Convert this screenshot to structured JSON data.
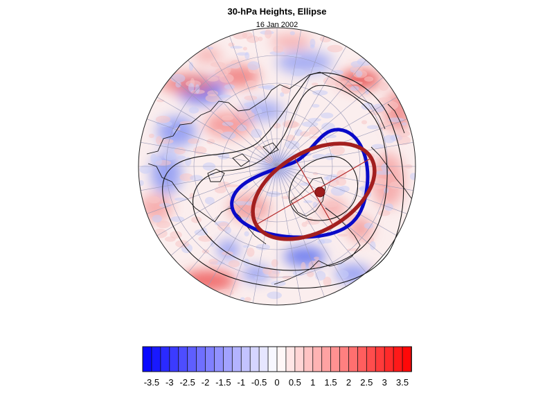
{
  "title": "30-hPa Heights, Ellipse",
  "subtitle": "16 Jan 2002",
  "colorbar": {
    "levels": [
      -3.75,
      -3.5,
      -3.25,
      -3,
      -2.75,
      -2.5,
      -2.25,
      -2,
      -1.75,
      -1.5,
      -1.25,
      -1,
      -0.75,
      -0.5,
      -0.25,
      0,
      0.25,
      0.5,
      0.75,
      1,
      1.25,
      1.5,
      1.75,
      2,
      2.25,
      2.5,
      2.75,
      3,
      3.25,
      3.5,
      3.75
    ],
    "tick_labels": [
      "-3.5",
      "-3",
      "-2.5",
      "-2",
      "-1.5",
      "-1",
      "-0.5",
      "0",
      "0.5",
      "1",
      "1.5",
      "2",
      "2.5",
      "3",
      "3.5"
    ],
    "negative_color": "#0000ff",
    "positive_color": "#ff0000",
    "neutral_color": "#ffffff"
  },
  "map": {
    "projection": "north-polar-stereographic",
    "field": "height anomaly (shaded)",
    "contours": "black height contours",
    "ellipses": [
      {
        "name": "blue-ellipse",
        "color": "#0000cc"
      },
      {
        "name": "red-ellipse",
        "color": "#a01c1c"
      }
    ],
    "vortex_center_color": "#a01c1c"
  }
}
